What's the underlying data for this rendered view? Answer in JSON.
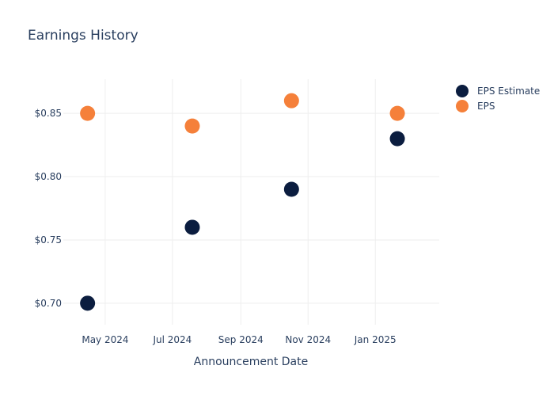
{
  "chart_data": {
    "type": "scatter",
    "title": "Earnings History",
    "xlabel": "Announcement Date",
    "ylabel": "",
    "x_axis": {
      "type": "date",
      "range": [
        "2024-03-24",
        "2025-02-28"
      ],
      "ticks": [
        {
          "date": "2024-05-01",
          "label": "May 2024"
        },
        {
          "date": "2024-07-01",
          "label": "Jul 2024"
        },
        {
          "date": "2024-09-01",
          "label": "Sep 2024"
        },
        {
          "date": "2024-11-01",
          "label": "Nov 2024"
        },
        {
          "date": "2025-01-01",
          "label": "Jan 2025"
        }
      ]
    },
    "y_axis": {
      "range": [
        0.683,
        0.877
      ],
      "ticks": [
        {
          "value": 0.7,
          "label": "$0.70"
        },
        {
          "value": 0.75,
          "label": "$0.75"
        },
        {
          "value": 0.8,
          "label": "$0.80"
        },
        {
          "value": 0.85,
          "label": "$0.85"
        }
      ]
    },
    "grid": true,
    "legend_position": "top-right",
    "series": [
      {
        "name": "EPS Estimate",
        "color": "#0b1d3f",
        "points": [
          {
            "x": "2024-04-15",
            "y": 0.7
          },
          {
            "x": "2024-07-19",
            "y": 0.76
          },
          {
            "x": "2024-10-17",
            "y": 0.79
          },
          {
            "x": "2025-01-21",
            "y": 0.83
          }
        ]
      },
      {
        "name": "EPS",
        "color": "#f5803a",
        "points": [
          {
            "x": "2024-04-15",
            "y": 0.85
          },
          {
            "x": "2024-07-19",
            "y": 0.84
          },
          {
            "x": "2024-10-17",
            "y": 0.86
          },
          {
            "x": "2025-01-21",
            "y": 0.85
          }
        ]
      }
    ]
  }
}
